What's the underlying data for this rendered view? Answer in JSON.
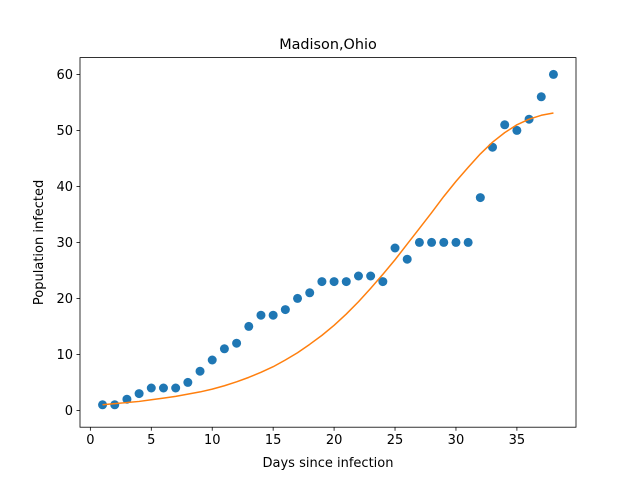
{
  "chart_data": {
    "type": "scatter",
    "title": "Madison,Ohio",
    "xlabel": "Days since infection",
    "ylabel": "Population infected",
    "xlim": [
      -0.85,
      39.85
    ],
    "ylim": [
      -3.0,
      63.0
    ],
    "grid": false,
    "x_ticks": [
      0,
      5,
      10,
      15,
      20,
      25,
      30,
      35
    ],
    "y_ticks": [
      0,
      10,
      20,
      30,
      40,
      50,
      60
    ],
    "series": [
      {
        "kind": "scatter",
        "color": "#1f77b4",
        "x": [
          1,
          2,
          3,
          4,
          5,
          6,
          7,
          8,
          9,
          10,
          11,
          12,
          13,
          14,
          15,
          16,
          17,
          18,
          19,
          20,
          21,
          22,
          23,
          24,
          25,
          26,
          27,
          28,
          29,
          30,
          31,
          32,
          33,
          34,
          35,
          36,
          37,
          38
        ],
        "y": [
          1,
          1,
          2,
          3,
          4,
          4,
          4,
          5,
          7,
          9,
          11,
          12,
          15,
          17,
          17,
          18,
          20,
          21,
          23,
          23,
          23,
          24,
          24,
          23,
          29,
          27,
          30,
          30,
          30,
          30,
          30,
          38,
          47,
          51,
          50,
          52,
          56,
          60
        ]
      },
      {
        "kind": "line",
        "color": "#ff7f0e",
        "x": [
          1,
          2,
          3,
          4,
          5,
          6,
          7,
          8,
          9,
          10,
          11,
          12,
          13,
          14,
          15,
          16,
          17,
          18,
          19,
          20,
          21,
          22,
          23,
          24,
          25,
          26,
          27,
          28,
          29,
          30,
          31,
          32,
          33,
          34,
          35,
          36,
          37,
          38
        ],
        "y": [
          1.0,
          1.2,
          1.4,
          1.6,
          1.9,
          2.2,
          2.5,
          2.9,
          3.3,
          3.8,
          4.4,
          5.1,
          5.9,
          6.8,
          7.8,
          9.0,
          10.3,
          11.8,
          13.4,
          15.2,
          17.2,
          19.4,
          21.8,
          24.3,
          26.9,
          29.7,
          32.5,
          35.3,
          38.2,
          40.9,
          43.4,
          45.8,
          47.9,
          49.6,
          51.0,
          52.0,
          52.7,
          53.1
        ]
      }
    ]
  }
}
